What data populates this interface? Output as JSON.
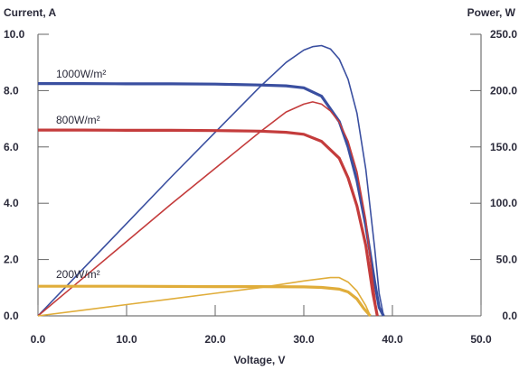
{
  "chart_data": {
    "type": "line",
    "xlabel": "Voltage, V",
    "ylabel_left": "Current, A",
    "ylabel_right": "Power, W",
    "xlim": [
      0,
      50
    ],
    "ylim_left": [
      0,
      10
    ],
    "ylim_right": [
      0,
      250
    ],
    "x_ticks": [
      "0.0",
      "10.0",
      "20.0",
      "30.0",
      "40.0",
      "50.0"
    ],
    "y_left_ticks": [
      "0.0",
      "2.0",
      "4.0",
      "6.0",
      "8.0",
      "10.0"
    ],
    "y_right_ticks": [
      "0.0",
      "50.0",
      "100.0",
      "150.0",
      "200.0",
      "250.0"
    ],
    "grid": false,
    "series": [
      {
        "name": "1000W/m²",
        "color": "#3a4fa0",
        "iv_curve": {
          "axis": "left",
          "x": [
            0,
            5,
            10,
            15,
            20,
            25,
            28,
            30,
            32,
            34,
            35,
            36,
            37,
            38,
            38.5,
            39
          ],
          "y": [
            8.25,
            8.25,
            8.24,
            8.24,
            8.23,
            8.2,
            8.17,
            8.1,
            7.8,
            6.9,
            6.0,
            4.8,
            3.2,
            1.2,
            0.3,
            0
          ]
        },
        "power_curve": {
          "axis": "right",
          "x": [
            0,
            5,
            10,
            15,
            20,
            25,
            28,
            30,
            31,
            32,
            33,
            34,
            35,
            36,
            37,
            38,
            38.5,
            39
          ],
          "y": [
            0,
            41,
            82,
            123,
            163,
            203,
            225,
            236,
            239,
            240,
            237,
            228,
            210,
            180,
            130,
            60,
            20,
            0
          ]
        }
      },
      {
        "name": "800W/m²",
        "color": "#c43c3c",
        "iv_curve": {
          "axis": "left",
          "x": [
            0,
            5,
            10,
            15,
            20,
            25,
            28,
            30,
            32,
            34,
            35,
            36,
            37,
            37.8,
            38.3
          ],
          "y": [
            6.6,
            6.6,
            6.59,
            6.59,
            6.58,
            6.56,
            6.52,
            6.45,
            6.2,
            5.6,
            4.9,
            3.9,
            2.5,
            0.8,
            0
          ]
        },
        "power_curve": {
          "axis": "right",
          "x": [
            0,
            5,
            10,
            15,
            20,
            25,
            28,
            30,
            31,
            32,
            33,
            34,
            35,
            36,
            37,
            37.8,
            38.3
          ],
          "y": [
            0,
            33,
            66,
            99,
            131,
            163,
            181,
            188,
            190,
            188,
            182,
            172,
            155,
            128,
            85,
            30,
            0
          ]
        }
      },
      {
        "name": "200W/m²",
        "color": "#e0ad3a",
        "iv_curve": {
          "axis": "left",
          "x": [
            0,
            5,
            10,
            20,
            25,
            30,
            32,
            34,
            35,
            36,
            36.8,
            37.5
          ],
          "y": [
            1.05,
            1.05,
            1.05,
            1.04,
            1.04,
            1.03,
            1.01,
            0.95,
            0.85,
            0.6,
            0.25,
            0
          ]
        },
        "power_curve": {
          "axis": "right",
          "x": [
            0,
            5,
            10,
            15,
            20,
            25,
            30,
            32,
            33,
            34,
            35,
            36,
            37,
            37.5
          ],
          "y": [
            0,
            5,
            10,
            15,
            20,
            25,
            31,
            33,
            34,
            34,
            30,
            22,
            9,
            0
          ]
        }
      }
    ]
  }
}
